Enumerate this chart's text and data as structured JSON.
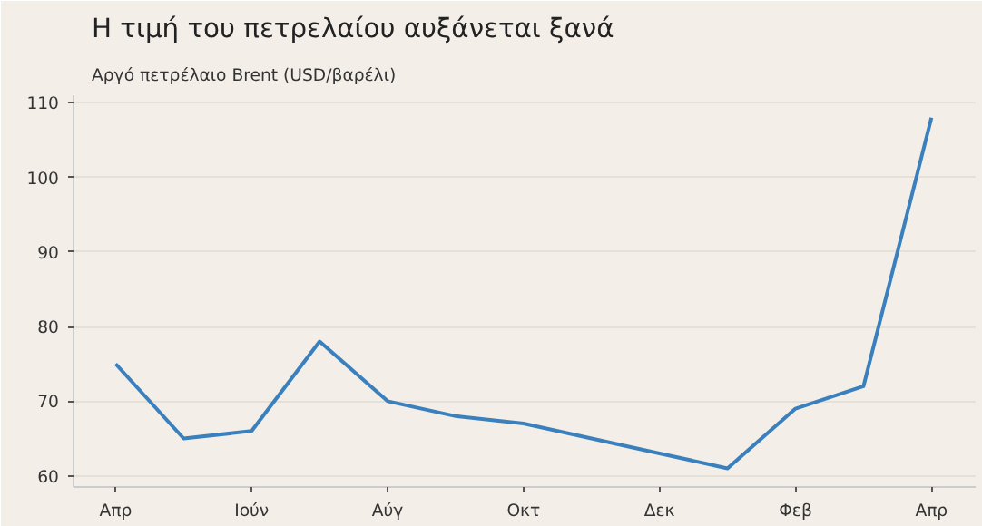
{
  "chart_data": {
    "type": "line",
    "title": "Η τιμή του πετρελαίου αυξάνεται ξανά",
    "subtitle": "Αργό πετρέλαιο Brent (USD/βαρέλι)",
    "categories": [
      "Απρ",
      null,
      "Ιούν",
      null,
      "Αύγ",
      null,
      "Οκτ",
      null,
      "Δεκ",
      null,
      "Φεβ",
      null,
      "Απρ"
    ],
    "series": [
      {
        "color": "#3a80bd",
        "values": [
          75,
          65,
          66,
          78,
          70,
          68,
          67,
          65,
          63,
          61,
          69,
          72,
          108
        ]
      }
    ],
    "ylim": [
      58.5,
      111
    ],
    "yticks": [
      60,
      70,
      80,
      90,
      100,
      110
    ],
    "grid": "y",
    "marker": "none",
    "line_style": "solid"
  }
}
